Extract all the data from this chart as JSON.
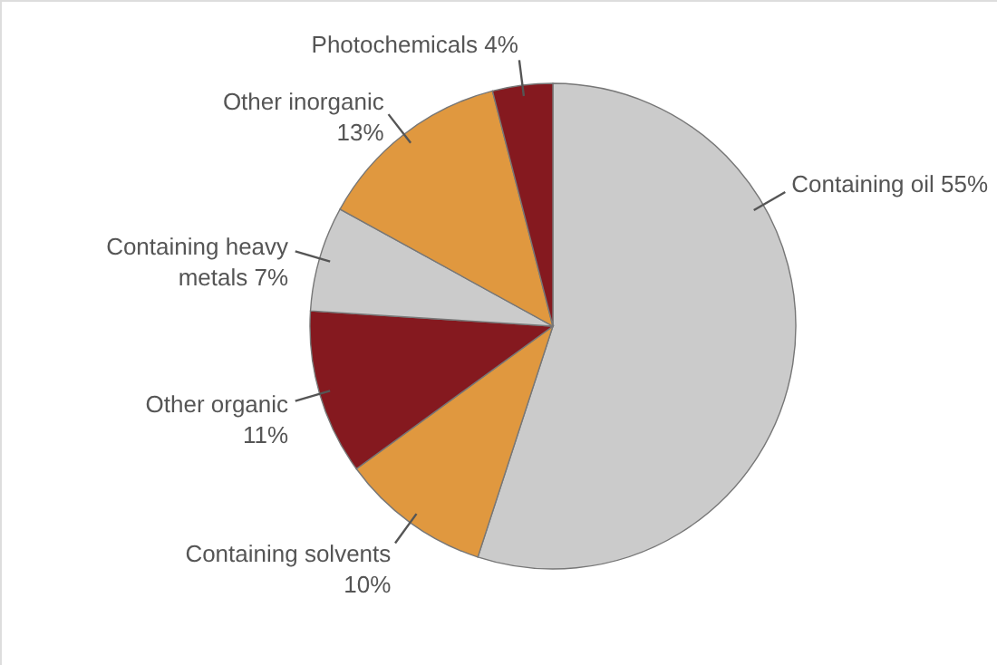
{
  "chart_data": {
    "type": "pie",
    "categories": [
      "Containing oil",
      "Containing solvents",
      "Other organic",
      "Containing heavy metals",
      "Other inorganic",
      "Photochemicals"
    ],
    "values": [
      55,
      10,
      11,
      7,
      13,
      4
    ],
    "value_labels": [
      "55%",
      "10%",
      "11%",
      "7%",
      "13%",
      "4%"
    ],
    "colors": [
      "#cbcbcb",
      "#e0983f",
      "#85191f",
      "#cbcbcb",
      "#e0983f",
      "#85191f"
    ]
  }
}
